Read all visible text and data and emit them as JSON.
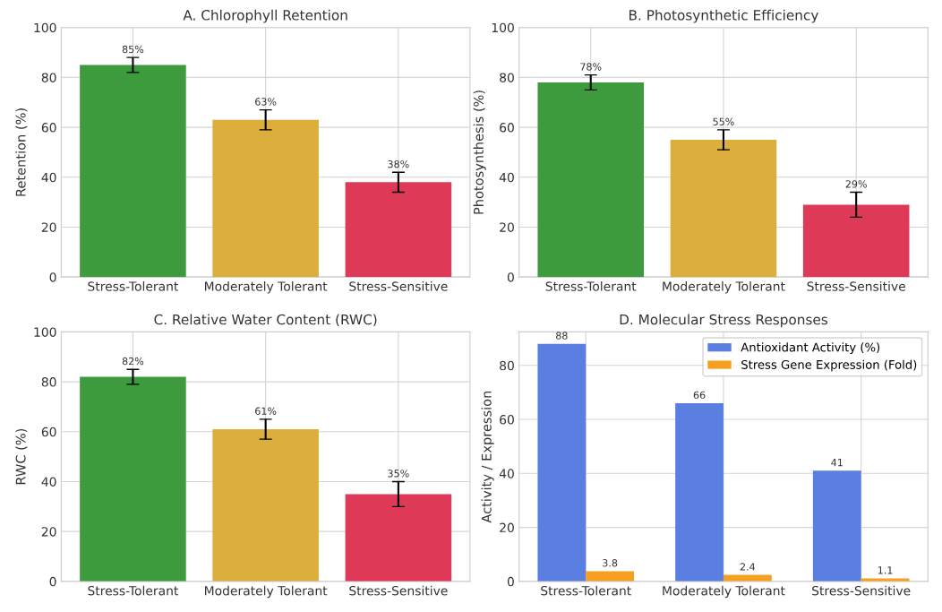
{
  "chart_data": [
    {
      "type": "bar",
      "title": "A. Chlorophyll Retention",
      "ylabel": "Retention (%)",
      "categories": [
        "Stress-Tolerant",
        "Moderately Tolerant",
        "Stress-Sensitive"
      ],
      "values": [
        85,
        63,
        38
      ],
      "errors": [
        3,
        4,
        4
      ],
      "colors": [
        "#3d9a3d",
        "#dcae3c",
        "#de3a57"
      ],
      "value_labels": [
        "85%",
        "63%",
        "38%"
      ],
      "ylim": [
        0,
        100
      ],
      "yticks": [
        0,
        20,
        40,
        60,
        80,
        100
      ],
      "grid": true
    },
    {
      "type": "bar",
      "title": "B. Photosynthetic Efficiency",
      "ylabel": "Photosynthesis (%)",
      "categories": [
        "Stress-Tolerant",
        "Moderately Tolerant",
        "Stress-Sensitive"
      ],
      "values": [
        78,
        55,
        29
      ],
      "errors": [
        3,
        4,
        5
      ],
      "colors": [
        "#3d9a3d",
        "#dcae3c",
        "#de3a57"
      ],
      "value_labels": [
        "78%",
        "55%",
        "29%"
      ],
      "ylim": [
        0,
        100
      ],
      "yticks": [
        0,
        20,
        40,
        60,
        80,
        100
      ],
      "grid": true
    },
    {
      "type": "bar",
      "title": "C. Relative Water Content (RWC)",
      "ylabel": "RWC (%)",
      "categories": [
        "Stress-Tolerant",
        "Moderately Tolerant",
        "Stress-Sensitive"
      ],
      "values": [
        82,
        61,
        35
      ],
      "errors": [
        3,
        4,
        5
      ],
      "colors": [
        "#3d9a3d",
        "#dcae3c",
        "#de3a57"
      ],
      "value_labels": [
        "82%",
        "61%",
        "35%"
      ],
      "ylim": [
        0,
        100
      ],
      "yticks": [
        0,
        20,
        40,
        60,
        80,
        100
      ],
      "grid": true
    },
    {
      "type": "bar",
      "title": "D. Molecular Stress Responses",
      "ylabel": "Activity / Expression",
      "categories": [
        "Stress-Tolerant",
        "Moderately Tolerant",
        "Stress-Sensitive"
      ],
      "series": [
        {
          "name": "Antioxidant Activity (%)",
          "color": "#5b7fe0",
          "values": [
            88,
            66,
            41
          ]
        },
        {
          "name": "Stress Gene Expression (Fold)",
          "color": "#f5a023",
          "values": [
            3.8,
            2.4,
            1.1
          ]
        }
      ],
      "data_labels": true,
      "ylim": [
        0,
        92.4
      ],
      "yticks": [
        0,
        20,
        40,
        60,
        80
      ],
      "grid": true,
      "legend": "top right"
    }
  ]
}
